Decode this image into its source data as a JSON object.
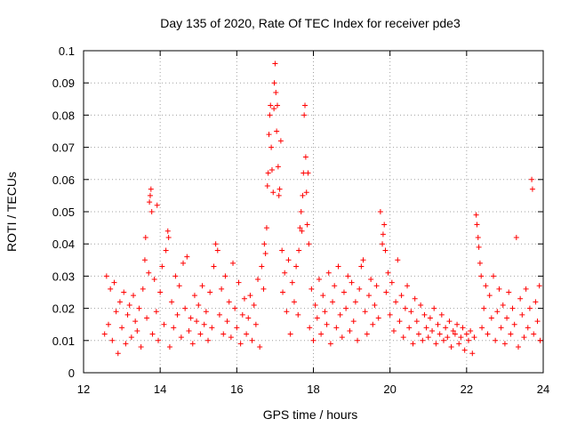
{
  "chart_data": {
    "type": "scatter",
    "title": "Day 135 of 2020, Rate Of TEC Index for receiver pde3",
    "xlabel": "GPS time / hours",
    "ylabel": "ROTI / TECUs",
    "xlim": [
      12,
      24
    ],
    "ylim": [
      0,
      0.1
    ],
    "x_ticks": [
      12,
      14,
      16,
      18,
      20,
      22,
      24
    ],
    "x_tick_labels": [
      "12",
      "14",
      "16",
      "18",
      "20",
      "22",
      "24"
    ],
    "y_ticks": [
      0,
      0.01,
      0.02,
      0.03,
      0.04,
      0.05,
      0.06,
      0.07,
      0.08,
      0.09,
      0.1
    ],
    "y_tick_labels": [
      "0",
      "0.01",
      "0.02",
      "0.03",
      "0.04",
      "0.05",
      "0.06",
      "0.07",
      "0.08",
      "0.09",
      "0.1"
    ],
    "grid": true,
    "marker": "+",
    "color": "#ff0000",
    "series": [
      {
        "name": "ROTI",
        "points": [
          [
            12.55,
            0.012
          ],
          [
            12.6,
            0.03
          ],
          [
            12.65,
            0.015
          ],
          [
            12.7,
            0.026
          ],
          [
            12.75,
            0.01
          ],
          [
            12.8,
            0.028
          ],
          [
            12.85,
            0.019
          ],
          [
            12.9,
            0.006
          ],
          [
            12.95,
            0.022
          ],
          [
            13.0,
            0.014
          ],
          [
            13.05,
            0.025
          ],
          [
            13.1,
            0.009
          ],
          [
            13.15,
            0.018
          ],
          [
            13.2,
            0.021
          ],
          [
            13.25,
            0.011
          ],
          [
            13.3,
            0.024
          ],
          [
            13.35,
            0.016
          ],
          [
            13.4,
            0.013
          ],
          [
            13.45,
            0.02
          ],
          [
            13.5,
            0.008
          ],
          [
            13.55,
            0.026
          ],
          [
            13.6,
            0.035
          ],
          [
            13.62,
            0.042
          ],
          [
            13.65,
            0.017
          ],
          [
            13.7,
            0.031
          ],
          [
            13.72,
            0.053
          ],
          [
            13.74,
            0.055
          ],
          [
            13.76,
            0.057
          ],
          [
            13.78,
            0.05
          ],
          [
            13.8,
            0.012
          ],
          [
            13.85,
            0.029
          ],
          [
            13.9,
            0.019
          ],
          [
            13.92,
            0.052
          ],
          [
            13.95,
            0.01
          ],
          [
            14.0,
            0.025
          ],
          [
            14.05,
            0.033
          ],
          [
            14.1,
            0.015
          ],
          [
            14.15,
            0.038
          ],
          [
            14.2,
            0.044
          ],
          [
            14.22,
            0.042
          ],
          [
            14.25,
            0.008
          ],
          [
            14.3,
            0.022
          ],
          [
            14.35,
            0.014
          ],
          [
            14.4,
            0.03
          ],
          [
            14.45,
            0.018
          ],
          [
            14.5,
            0.027
          ],
          [
            14.55,
            0.011
          ],
          [
            14.6,
            0.034
          ],
          [
            14.65,
            0.02
          ],
          [
            14.7,
            0.036
          ],
          [
            14.75,
            0.013
          ],
          [
            14.8,
            0.017
          ],
          [
            14.85,
            0.009
          ],
          [
            14.9,
            0.024
          ],
          [
            14.95,
            0.016
          ],
          [
            15.0,
            0.021
          ],
          [
            15.05,
            0.012
          ],
          [
            15.1,
            0.027
          ],
          [
            15.15,
            0.015
          ],
          [
            15.2,
            0.019
          ],
          [
            15.25,
            0.01
          ],
          [
            15.3,
            0.025
          ],
          [
            15.35,
            0.014
          ],
          [
            15.4,
            0.033
          ],
          [
            15.45,
            0.04
          ],
          [
            15.5,
            0.038
          ],
          [
            15.55,
            0.018
          ],
          [
            15.6,
            0.026
          ],
          [
            15.65,
            0.012
          ],
          [
            15.7,
            0.03
          ],
          [
            15.75,
            0.016
          ],
          [
            15.8,
            0.022
          ],
          [
            15.85,
            0.011
          ],
          [
            15.9,
            0.034
          ],
          [
            15.95,
            0.02
          ],
          [
            16.0,
            0.014
          ],
          [
            16.05,
            0.028
          ],
          [
            16.1,
            0.009
          ],
          [
            16.15,
            0.018
          ],
          [
            16.2,
            0.023
          ],
          [
            16.25,
            0.012
          ],
          [
            16.3,
            0.017
          ],
          [
            16.35,
            0.024
          ],
          [
            16.4,
            0.01
          ],
          [
            16.45,
            0.021
          ],
          [
            16.5,
            0.015
          ],
          [
            16.55,
            0.029
          ],
          [
            16.6,
            0.008
          ],
          [
            16.65,
            0.033
          ],
          [
            16.7,
            0.026
          ],
          [
            16.72,
            0.04
          ],
          [
            16.75,
            0.037
          ],
          [
            16.78,
            0.045
          ],
          [
            16.8,
            0.058
          ],
          [
            16.82,
            0.062
          ],
          [
            16.84,
            0.074
          ],
          [
            16.86,
            0.08
          ],
          [
            16.88,
            0.083
          ],
          [
            16.9,
            0.07
          ],
          [
            16.92,
            0.063
          ],
          [
            16.95,
            0.056
          ],
          [
            16.97,
            0.082
          ],
          [
            16.98,
            0.09
          ],
          [
            17.0,
            0.096
          ],
          [
            17.02,
            0.087
          ],
          [
            17.04,
            0.075
          ],
          [
            17.06,
            0.083
          ],
          [
            17.08,
            0.064
          ],
          [
            17.1,
            0.055
          ],
          [
            17.12,
            0.057
          ],
          [
            17.15,
            0.072
          ],
          [
            17.18,
            0.038
          ],
          [
            17.2,
            0.025
          ],
          [
            17.25,
            0.031
          ],
          [
            17.3,
            0.019
          ],
          [
            17.35,
            0.035
          ],
          [
            17.4,
            0.012
          ],
          [
            17.45,
            0.028
          ],
          [
            17.5,
            0.022
          ],
          [
            17.55,
            0.033
          ],
          [
            17.6,
            0.018
          ],
          [
            17.62,
            0.038
          ],
          [
            17.65,
            0.045
          ],
          [
            17.68,
            0.05
          ],
          [
            17.7,
            0.044
          ],
          [
            17.72,
            0.055
          ],
          [
            17.74,
            0.062
          ],
          [
            17.76,
            0.08
          ],
          [
            17.78,
            0.083
          ],
          [
            17.8,
            0.067
          ],
          [
            17.82,
            0.056
          ],
          [
            17.84,
            0.046
          ],
          [
            17.86,
            0.062
          ],
          [
            17.88,
            0.04
          ],
          [
            17.9,
            0.014
          ],
          [
            17.95,
            0.026
          ],
          [
            18.0,
            0.01
          ],
          [
            18.05,
            0.021
          ],
          [
            18.1,
            0.017
          ],
          [
            18.15,
            0.029
          ],
          [
            18.2,
            0.012
          ],
          [
            18.25,
            0.024
          ],
          [
            18.3,
            0.019
          ],
          [
            18.35,
            0.015
          ],
          [
            18.4,
            0.031
          ],
          [
            18.45,
            0.009
          ],
          [
            18.5,
            0.022
          ],
          [
            18.55,
            0.027
          ],
          [
            18.6,
            0.014
          ],
          [
            18.65,
            0.033
          ],
          [
            18.7,
            0.018
          ],
          [
            18.75,
            0.011
          ],
          [
            18.8,
            0.025
          ],
          [
            18.85,
            0.02
          ],
          [
            18.9,
            0.03
          ],
          [
            18.95,
            0.013
          ],
          [
            19.0,
            0.028
          ],
          [
            19.05,
            0.016
          ],
          [
            19.1,
            0.022
          ],
          [
            19.15,
            0.01
          ],
          [
            19.2,
            0.026
          ],
          [
            19.25,
            0.033
          ],
          [
            19.3,
            0.035
          ],
          [
            19.35,
            0.019
          ],
          [
            19.4,
            0.012
          ],
          [
            19.45,
            0.024
          ],
          [
            19.5,
            0.029
          ],
          [
            19.55,
            0.015
          ],
          [
            19.6,
            0.021
          ],
          [
            19.65,
            0.027
          ],
          [
            19.7,
            0.017
          ],
          [
            19.75,
            0.05
          ],
          [
            19.8,
            0.04
          ],
          [
            19.82,
            0.043
          ],
          [
            19.85,
            0.046
          ],
          [
            19.88,
            0.038
          ],
          [
            19.9,
            0.025
          ],
          [
            19.95,
            0.031
          ],
          [
            20.0,
            0.018
          ],
          [
            20.05,
            0.028
          ],
          [
            20.1,
            0.013
          ],
          [
            20.15,
            0.022
          ],
          [
            20.2,
            0.035
          ],
          [
            20.25,
            0.016
          ],
          [
            20.3,
            0.024
          ],
          [
            20.35,
            0.011
          ],
          [
            20.4,
            0.02
          ],
          [
            20.45,
            0.027
          ],
          [
            20.5,
            0.014
          ],
          [
            20.55,
            0.019
          ],
          [
            20.6,
            0.009
          ],
          [
            20.65,
            0.023
          ],
          [
            20.7,
            0.016
          ],
          [
            20.75,
            0.012
          ],
          [
            20.8,
            0.021
          ],
          [
            20.85,
            0.01
          ],
          [
            20.9,
            0.018
          ],
          [
            20.95,
            0.014
          ],
          [
            21.0,
            0.011
          ],
          [
            21.05,
            0.017
          ],
          [
            21.1,
            0.013
          ],
          [
            21.15,
            0.02
          ],
          [
            21.2,
            0.009
          ],
          [
            21.25,
            0.015
          ],
          [
            21.3,
            0.012
          ],
          [
            21.35,
            0.018
          ],
          [
            21.4,
            0.01
          ],
          [
            21.45,
            0.014
          ],
          [
            21.5,
            0.011
          ],
          [
            21.55,
            0.016
          ],
          [
            21.6,
            0.008
          ],
          [
            21.65,
            0.013
          ],
          [
            21.7,
            0.012
          ],
          [
            21.75,
            0.015
          ],
          [
            21.8,
            0.009
          ],
          [
            21.85,
            0.011
          ],
          [
            21.9,
            0.014
          ],
          [
            21.95,
            0.007
          ],
          [
            22.0,
            0.012
          ],
          [
            22.05,
            0.01
          ],
          [
            22.1,
            0.013
          ],
          [
            22.15,
            0.006
          ],
          [
            22.2,
            0.011
          ],
          [
            22.25,
            0.049
          ],
          [
            22.27,
            0.046
          ],
          [
            22.3,
            0.042
          ],
          [
            22.32,
            0.039
          ],
          [
            22.35,
            0.034
          ],
          [
            22.38,
            0.03
          ],
          [
            22.4,
            0.014
          ],
          [
            22.45,
            0.02
          ],
          [
            22.5,
            0.027
          ],
          [
            22.55,
            0.012
          ],
          [
            22.6,
            0.024
          ],
          [
            22.65,
            0.017
          ],
          [
            22.7,
            0.03
          ],
          [
            22.75,
            0.01
          ],
          [
            22.8,
            0.019
          ],
          [
            22.85,
            0.026
          ],
          [
            22.9,
            0.014
          ],
          [
            22.95,
            0.021
          ],
          [
            23.0,
            0.009
          ],
          [
            23.05,
            0.017
          ],
          [
            23.1,
            0.025
          ],
          [
            23.15,
            0.012
          ],
          [
            23.2,
            0.02
          ],
          [
            23.25,
            0.015
          ],
          [
            23.3,
            0.042
          ],
          [
            23.35,
            0.008
          ],
          [
            23.4,
            0.023
          ],
          [
            23.45,
            0.018
          ],
          [
            23.5,
            0.011
          ],
          [
            23.55,
            0.026
          ],
          [
            23.6,
            0.014
          ],
          [
            23.65,
            0.02
          ],
          [
            23.7,
            0.06
          ],
          [
            23.72,
            0.057
          ],
          [
            23.75,
            0.012
          ],
          [
            23.8,
            0.022
          ],
          [
            23.85,
            0.016
          ],
          [
            23.9,
            0.027
          ],
          [
            23.92,
            0.01
          ]
        ]
      }
    ]
  }
}
